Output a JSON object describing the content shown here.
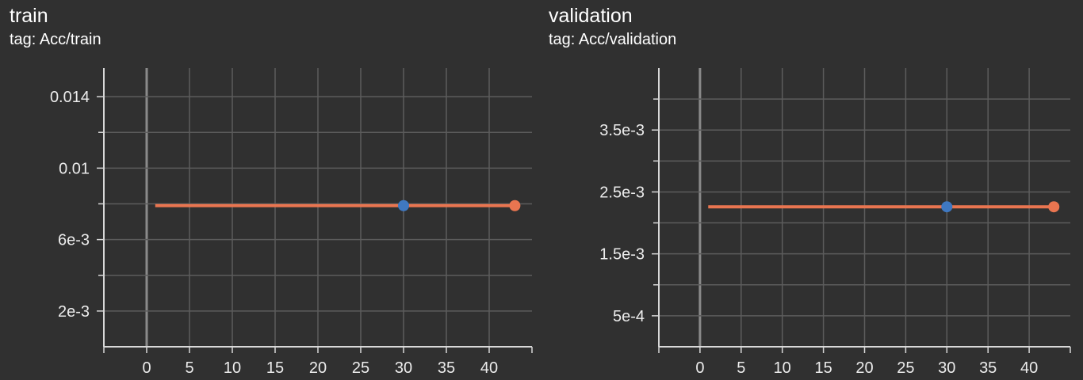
{
  "chart_data": [
    {
      "type": "line",
      "title": "train",
      "subtitle": "tag: Acc/train",
      "xlim": [
        -5,
        45
      ],
      "ylim": [
        0.0,
        0.0156
      ],
      "x_ticks": [
        0,
        5,
        10,
        15,
        20,
        25,
        30,
        35,
        40
      ],
      "y_ticks_labeled": [
        {
          "value": 0.002,
          "label": "2e-3"
        },
        {
          "value": 0.006,
          "label": "6e-3"
        },
        {
          "value": 0.01,
          "label": "0.01"
        },
        {
          "value": 0.014,
          "label": "0.014"
        }
      ],
      "y_ticks_minor": [
        0.004,
        0.008,
        0.012
      ],
      "grid": true,
      "series": [
        {
          "color": "#e97550",
          "x": [
            1,
            43
          ],
          "y": [
            0.0079,
            0.0079
          ],
          "markers": [
            {
              "x": 30,
              "y": 0.0079,
              "color": "#3f78c1"
            },
            {
              "x": 43,
              "y": 0.0079,
              "color": "#e97550"
            }
          ]
        }
      ]
    },
    {
      "type": "line",
      "title": "validation",
      "subtitle": "tag: Acc/validation",
      "xlim": [
        -5,
        45
      ],
      "ylim": [
        0.0,
        0.0045
      ],
      "x_ticks": [
        0,
        5,
        10,
        15,
        20,
        25,
        30,
        35,
        40
      ],
      "y_ticks_labeled": [
        {
          "value": 0.0005,
          "label": "5e-4"
        },
        {
          "value": 0.0015,
          "label": "1.5e-3"
        },
        {
          "value": 0.0025,
          "label": "2.5e-3"
        },
        {
          "value": 0.0035,
          "label": "3.5e-3"
        }
      ],
      "y_ticks_minor": [
        0.001,
        0.002,
        0.003,
        0.004
      ],
      "grid": true,
      "series": [
        {
          "color": "#e97550",
          "x": [
            1,
            43
          ],
          "y": [
            0.00226,
            0.00226
          ],
          "markers": [
            {
              "x": 30,
              "y": 0.00226,
              "color": "#3f78c1"
            },
            {
              "x": 43,
              "y": 0.00226,
              "color": "#e97550"
            }
          ]
        }
      ]
    }
  ]
}
